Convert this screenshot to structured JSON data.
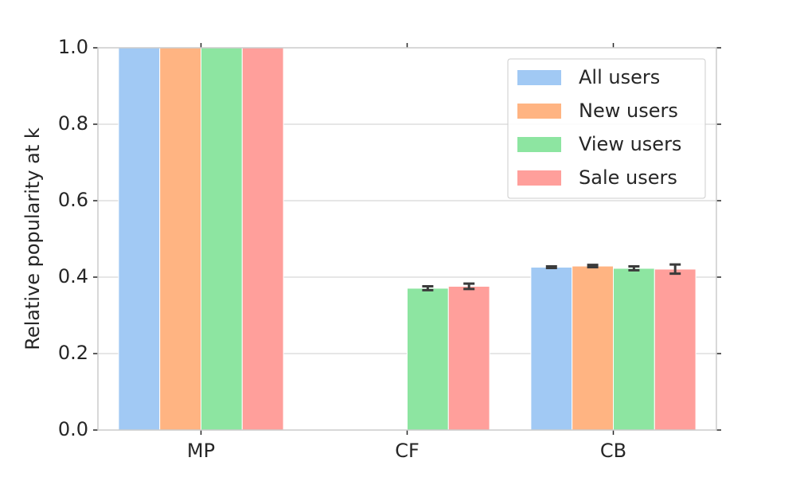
{
  "chart_data": {
    "type": "bar",
    "ylabel": "Relative popularity at k",
    "categories": [
      "MP",
      "CF",
      "CB"
    ],
    "series": [
      {
        "name": "All users",
        "color": "#a1c9f4",
        "values": [
          1.0,
          null,
          0.426
        ],
        "errors": [
          null,
          null,
          0.002
        ]
      },
      {
        "name": "New users",
        "color": "#ffb482",
        "values": [
          1.0,
          null,
          0.429
        ],
        "errors": [
          null,
          null,
          0.003
        ]
      },
      {
        "name": "View users",
        "color": "#8de5a1",
        "values": [
          1.0,
          0.371,
          0.423
        ],
        "errors": [
          null,
          0.005,
          0.005
        ]
      },
      {
        "name": "Sale users",
        "color": "#ff9f9b",
        "values": [
          1.0,
          0.376,
          0.421
        ],
        "errors": [
          null,
          0.007,
          0.012
        ]
      }
    ],
    "ylim": [
      0,
      1
    ],
    "yticks": [
      {
        "value": 0,
        "label": "0.0"
      },
      0.2,
      0.4,
      0.6,
      0.8,
      {
        "value": 1,
        "label": "1.0"
      }
    ],
    "grid": true,
    "legend": "upper right"
  }
}
